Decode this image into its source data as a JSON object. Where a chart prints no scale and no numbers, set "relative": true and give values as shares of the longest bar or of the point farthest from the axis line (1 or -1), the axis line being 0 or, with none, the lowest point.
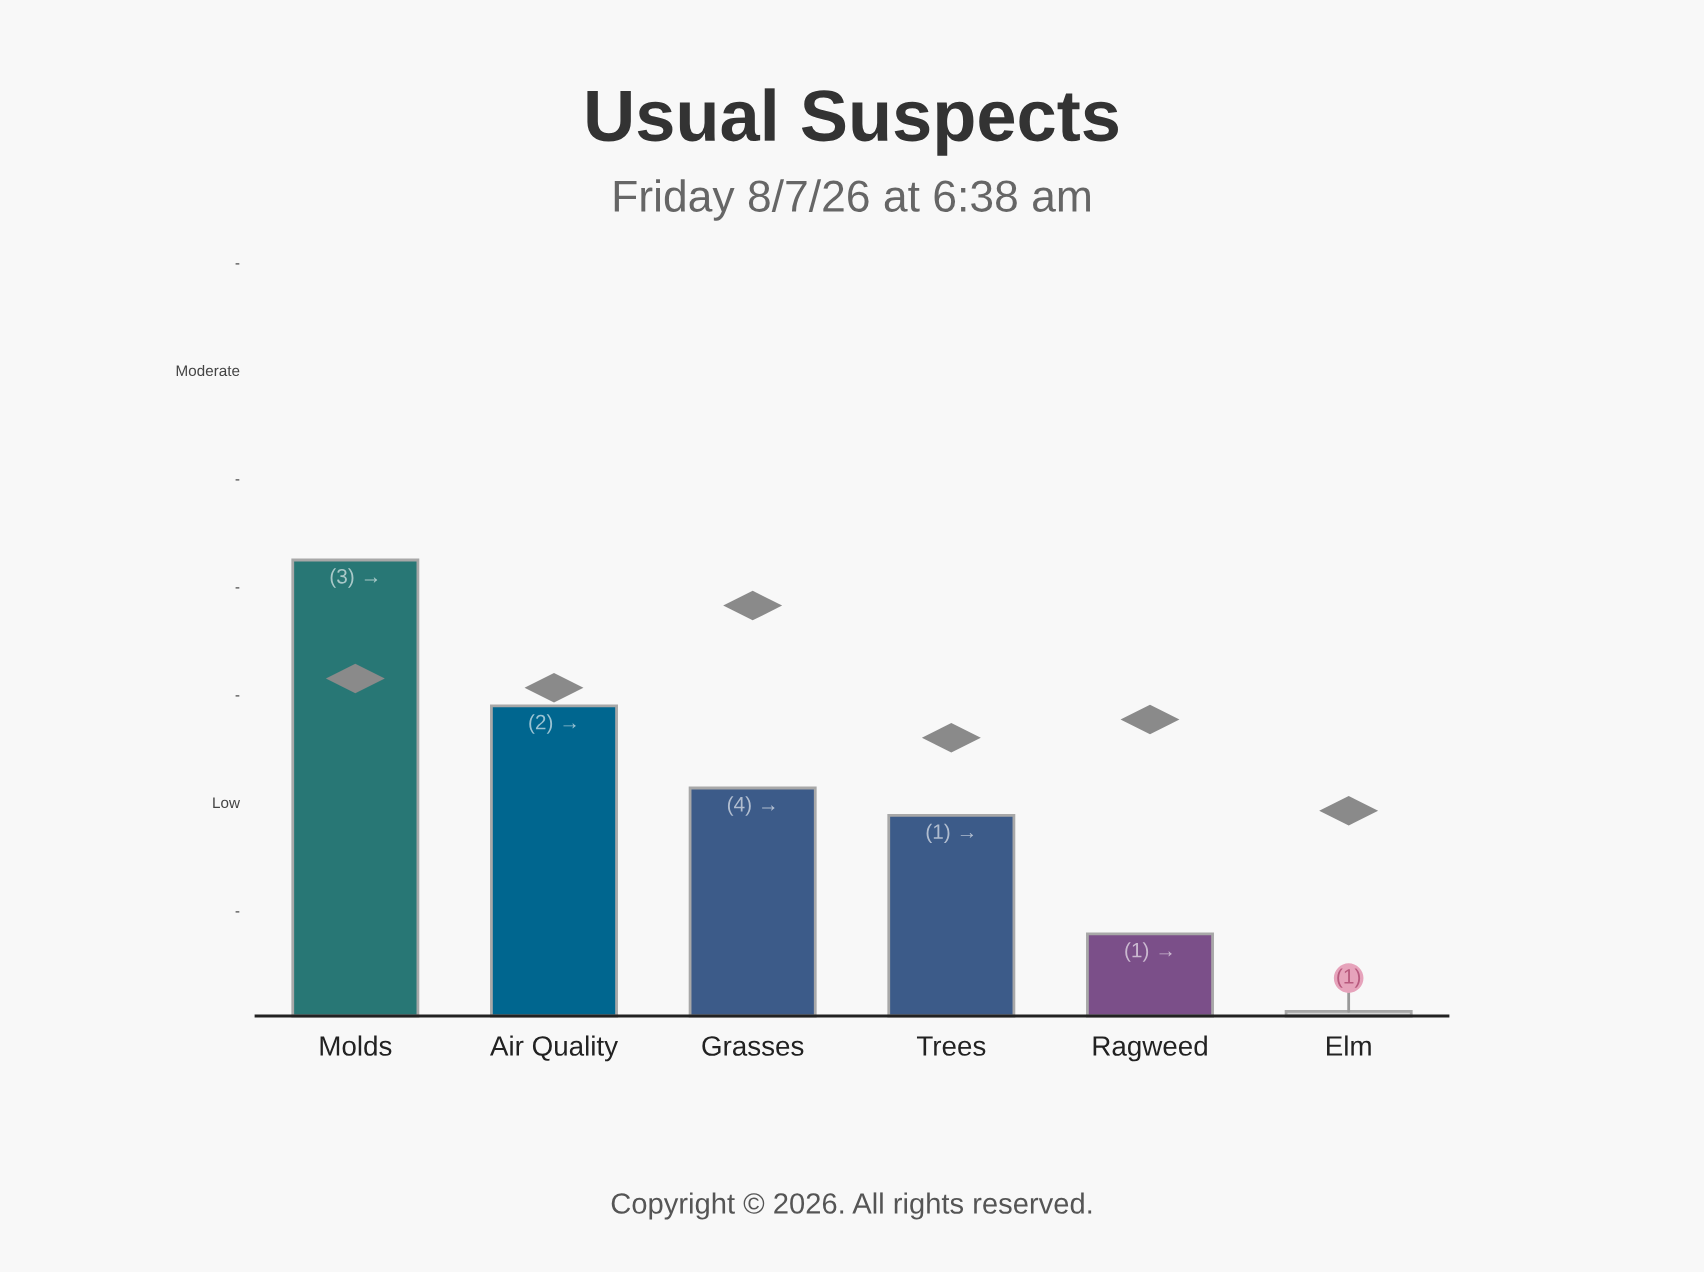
{
  "chart_data": {
    "type": "bar",
    "title": "Usual Suspects",
    "subtitle": "Friday 8/7/26 at 6:38 am",
    "categories": [
      "Molds",
      "Air Quality",
      "Grasses",
      "Trees",
      "Ragweed",
      "Elm"
    ],
    "relative": true,
    "series": [
      {
        "colors": [
          "#287775",
          "#00668f",
          "#3c5b89",
          "#3c5b89",
          "#7b4f89",
          "#d6d6d6"
        ],
        "values": [
          1,
          0.68,
          0.5,
          0.44,
          0.18,
          0.01
        ]
      },
      {
        "type": "scatter",
        "color": "#8a8a8a",
        "x": [
          "Molds",
          "Air Quality",
          "Grasses",
          "Trees",
          "Ragweed",
          "Elm"
        ],
        "values": [
          0.74,
          0.72,
          0.9,
          0.61,
          0.65,
          0.45
        ]
      }
    ],
    "marker": "diamond",
    "annotations": [
      "-",
      "Low",
      "-",
      "-",
      "-",
      "Moderate",
      "-",
      {
        "text": "(3) →",
        "x": "Molds",
        "y": 1
      },
      {
        "text": "(2) →",
        "x": "Air Quality",
        "y": 0.68
      },
      {
        "text": "(4) →",
        "x": "Grasses",
        "y": 0.5
      },
      {
        "text": "(1) →",
        "x": "Trees",
        "y": 0.44
      },
      {
        "text": "(1) →",
        "x": "Ragweed",
        "y": 0.18
      },
      {
        "text": "(1)",
        "x": "Elm",
        "y": 0.01
      },
      "Copyright © 2026. All rights reserved."
    ],
    "grid": false
  }
}
